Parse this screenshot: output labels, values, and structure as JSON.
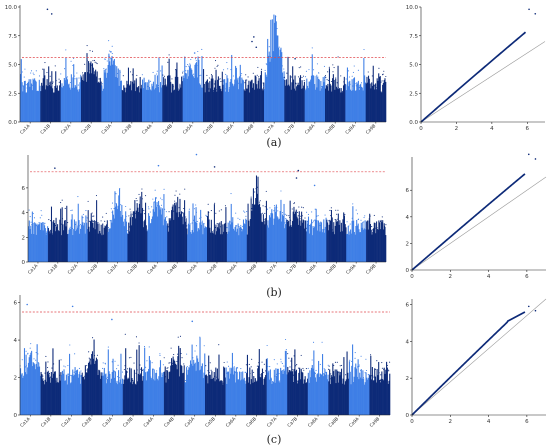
{
  "figure": {
    "panel_labels": [
      "(a)",
      "(b)",
      "(c)"
    ]
  },
  "chart_data": [
    {
      "type": "scatter",
      "subtype": "manhattan",
      "panel": "(a)",
      "xlabel": "",
      "ylabel": "",
      "ylim": [
        0,
        10
      ],
      "yticks": [
        "0.0",
        "2.5",
        "5.0",
        "7.5",
        "10.0"
      ],
      "categories": [
        "Ca1A",
        "Ca1B",
        "Ca2A",
        "Ca2B",
        "Ca3A",
        "Ca3B",
        "Ca4A",
        "Ca4B",
        "Ca5A",
        "Ca5B",
        "Ca6A",
        "Ca6B",
        "Ca7A",
        "Ca7B",
        "Ca8A",
        "Ca8B",
        "Ca9A",
        "Ca9B"
      ],
      "threshold": 5.6,
      "colors": [
        "#3f7fe6",
        "#0d2a78"
      ],
      "peaks": [
        {
          "category": "Ca1B",
          "value": 9.8
        },
        {
          "category": "Ca1B",
          "value": 9.4
        },
        {
          "category": "Ca3A",
          "value": 6.1
        },
        {
          "category": "Ca3A",
          "value": 5.7
        },
        {
          "category": "Ca5A",
          "value": 6.0
        },
        {
          "category": "Ca6B",
          "value": 7.4
        },
        {
          "category": "Ca6B",
          "value": 7.0
        },
        {
          "category": "Ca6B",
          "value": 6.5
        },
        {
          "category": "Ca7B",
          "value": 5.5
        }
      ],
      "grid": false,
      "legend": "none"
    },
    {
      "type": "scatter",
      "subtype": "qq",
      "panel": "(a)",
      "xlim": [
        0,
        7
      ],
      "ylim": [
        0,
        10
      ],
      "xticks": [
        "0",
        "2",
        "4",
        "6"
      ],
      "yticks": [
        "0.0",
        "2.5",
        "5.0",
        "7.5",
        "10.0"
      ],
      "observed_max": 9.8,
      "grid": false,
      "legend": "none"
    },
    {
      "type": "scatter",
      "subtype": "manhattan",
      "panel": "(b)",
      "xlabel": "",
      "ylabel": "",
      "ylim": [
        0,
        8.5
      ],
      "yticks": [
        "0",
        "2",
        "4",
        "6"
      ],
      "categories": [
        "Ca1A",
        "Ca1B",
        "Ca2A",
        "Ca2B",
        "Ca3A",
        "Ca3B",
        "Ca4A",
        "Ca4B",
        "Ca5A",
        "Ca5B",
        "Ca6A",
        "Ca6B",
        "Ca7A",
        "Ca7B",
        "Ca8A",
        "Ca8B",
        "Ca9A",
        "Ca9B"
      ],
      "threshold": 7.3,
      "colors": [
        "#3f7fe6",
        "#0d2a78"
      ],
      "peaks": [
        {
          "category": "Ca1B",
          "value": 7.6
        },
        {
          "category": "Ca4A",
          "value": 7.8
        },
        {
          "category": "Ca5A",
          "value": 8.7
        },
        {
          "category": "Ca5B",
          "value": 7.7
        },
        {
          "category": "Ca7B",
          "value": 7.4
        },
        {
          "category": "Ca7B",
          "value": 6.8
        },
        {
          "category": "Ca8A",
          "value": 6.2
        }
      ],
      "grid": false,
      "legend": "none"
    },
    {
      "type": "scatter",
      "subtype": "qq",
      "panel": "(b)",
      "xlim": [
        0,
        7
      ],
      "ylim": [
        0,
        8.5
      ],
      "xticks": [
        "0",
        "2",
        "4",
        "6"
      ],
      "yticks": [
        "0",
        "2",
        "4",
        "6"
      ],
      "observed_max": 8.7,
      "grid": false,
      "legend": "none"
    },
    {
      "type": "scatter",
      "subtype": "manhattan",
      "panel": "(c)",
      "xlabel": "",
      "ylabel": "",
      "ylim": [
        0,
        6.3
      ],
      "yticks": [
        "0",
        "2",
        "4",
        "6"
      ],
      "categories": [
        "Ca1A",
        "Ca1B",
        "Ca2A",
        "Ca2B",
        "Ca3A",
        "Ca3B",
        "Ca4A",
        "Ca4B",
        "Ca5A",
        "Ca5B",
        "Ca6A",
        "Ca6B",
        "Ca7A",
        "Ca7B",
        "Ca8A",
        "Ca8B",
        "Ca9A",
        "Ca9B"
      ],
      "threshold": 5.5,
      "colors": [
        "#3f7fe6",
        "#0d2a78"
      ],
      "peaks": [
        {
          "category": "Ca1A",
          "value": 5.9
        },
        {
          "category": "Ca2A",
          "value": 5.8
        },
        {
          "category": "Ca3A",
          "value": 5.1
        },
        {
          "category": "Ca5A",
          "value": 5.0
        }
      ],
      "grid": false,
      "legend": "none"
    },
    {
      "type": "scatter",
      "subtype": "qq",
      "panel": "(c)",
      "xlim": [
        0,
        7
      ],
      "ylim": [
        0,
        6.3
      ],
      "xticks": [
        "0",
        "2",
        "4",
        "6"
      ],
      "yticks": [
        "0",
        "2",
        "4",
        "6"
      ],
      "observed_max": 5.9,
      "grid": false,
      "legend": "none"
    }
  ]
}
